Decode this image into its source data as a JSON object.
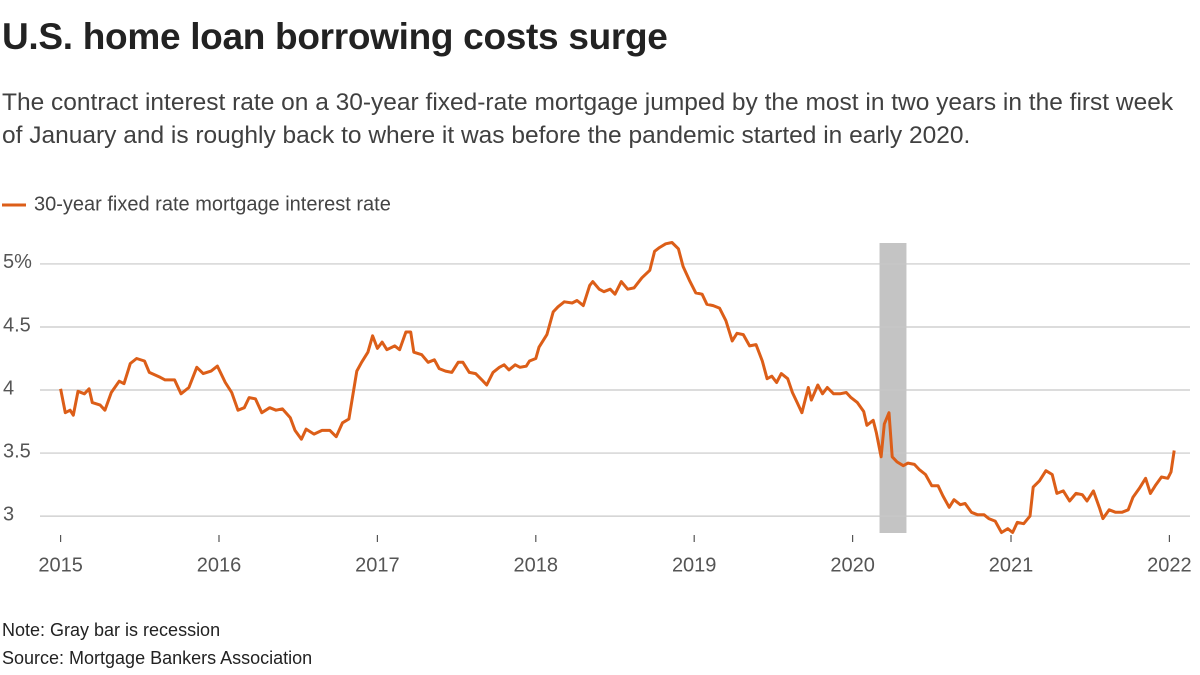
{
  "chart_data": {
    "type": "line",
    "title": "U.S. home loan borrowing costs surge",
    "subtitle": "The contract interest rate on a 30-year fixed-rate mortgage jumped by the most in two years in the first week of January and is roughly back to where it was before the pandemic started in early 2020.",
    "note": "Note: Gray bar is recession",
    "source": "Source: Mortgage Bankers Association",
    "x": [
      2015.0,
      2015.03,
      2015.06,
      2015.08,
      2015.11,
      2015.15,
      2015.18,
      2015.2,
      2015.25,
      2015.28,
      2015.32,
      2015.37,
      2015.4,
      2015.44,
      2015.48,
      2015.53,
      2015.56,
      2015.63,
      2015.66,
      2015.72,
      2015.76,
      2015.81,
      2015.86,
      2015.9,
      2015.95,
      2015.99,
      2016.04,
      2016.08,
      2016.12,
      2016.16,
      2016.19,
      2016.23,
      2016.27,
      2016.32,
      2016.36,
      2016.4,
      2016.45,
      2016.48,
      2016.52,
      2016.55,
      2016.6,
      2016.65,
      2016.7,
      2016.74,
      2016.78,
      2016.82,
      2016.87,
      2016.9,
      2016.94,
      2016.97,
      2017.0,
      2017.03,
      2017.06,
      2017.11,
      2017.14,
      2017.18,
      2017.21,
      2017.23,
      2017.28,
      2017.32,
      2017.36,
      2017.39,
      2017.43,
      2017.47,
      2017.51,
      2017.54,
      2017.58,
      2017.62,
      2017.66,
      2017.69,
      2017.73,
      2017.77,
      2017.8,
      2017.83,
      2017.87,
      2017.9,
      2017.94,
      2017.96,
      2018.0,
      2018.02,
      2018.07,
      2018.11,
      2018.14,
      2018.18,
      2018.23,
      2018.26,
      2018.3,
      2018.34,
      2018.36,
      2018.4,
      2018.43,
      2018.47,
      2018.5,
      2018.54,
      2018.58,
      2018.62,
      2018.67,
      2018.72,
      2018.75,
      2018.78,
      2018.82,
      2018.86,
      2018.9,
      2018.93,
      2018.97,
      2019.01,
      2019.05,
      2019.08,
      2019.12,
      2019.16,
      2019.2,
      2019.24,
      2019.27,
      2019.31,
      2019.35,
      2019.39,
      2019.43,
      2019.46,
      2019.49,
      2019.52,
      2019.55,
      2019.59,
      2019.62,
      2019.65,
      2019.68,
      2019.72,
      2019.74,
      2019.78,
      2019.81,
      2019.84,
      2019.88,
      2019.92,
      2019.96,
      2019.99,
      2020.03,
      2020.07,
      2020.09,
      2020.13,
      2020.15,
      2020.18,
      2020.2,
      2020.23,
      2020.25,
      2020.28,
      2020.32,
      2020.35,
      2020.39,
      2020.42,
      2020.46,
      2020.5,
      2020.54,
      2020.57,
      2020.61,
      2020.64,
      2020.68,
      2020.71,
      2020.75,
      2020.79,
      2020.83,
      2020.86,
      2020.9,
      2020.94,
      2020.98,
      2021.01,
      2021.04,
      2021.08,
      2021.12,
      2021.14,
      2021.18,
      2021.22,
      2021.26,
      2021.29,
      2021.33,
      2021.37,
      2021.41,
      2021.45,
      2021.48,
      2021.52,
      2021.56,
      2021.58,
      2021.62,
      2021.66,
      2021.7,
      2021.74,
      2021.77,
      2021.81,
      2021.85,
      2021.88,
      2021.91,
      2021.95,
      2021.99,
      2022.01,
      2022.03
    ],
    "series": [
      {
        "name": "30-year fixed rate mortgage interest rate",
        "color": "#dc5e18",
        "values": [
          4.01,
          3.82,
          3.84,
          3.8,
          3.99,
          3.97,
          4.01,
          3.9,
          3.88,
          3.84,
          3.98,
          4.07,
          4.05,
          4.21,
          4.25,
          4.23,
          4.14,
          4.1,
          4.08,
          4.08,
          3.97,
          4.02,
          4.18,
          4.13,
          4.15,
          4.19,
          4.06,
          3.98,
          3.84,
          3.86,
          3.94,
          3.93,
          3.82,
          3.86,
          3.84,
          3.85,
          3.78,
          3.68,
          3.61,
          3.69,
          3.65,
          3.68,
          3.68,
          3.63,
          3.74,
          3.77,
          4.15,
          4.22,
          4.3,
          4.43,
          4.33,
          4.38,
          4.32,
          4.35,
          4.32,
          4.46,
          4.46,
          4.3,
          4.28,
          4.22,
          4.24,
          4.17,
          4.15,
          4.14,
          4.22,
          4.22,
          4.14,
          4.13,
          4.08,
          4.04,
          4.14,
          4.18,
          4.2,
          4.16,
          4.2,
          4.18,
          4.19,
          4.23,
          4.25,
          4.34,
          4.44,
          4.62,
          4.66,
          4.7,
          4.69,
          4.71,
          4.67,
          4.83,
          4.86,
          4.8,
          4.78,
          4.8,
          4.76,
          4.86,
          4.8,
          4.81,
          4.89,
          4.95,
          5.1,
          5.13,
          5.16,
          5.17,
          5.12,
          4.98,
          4.87,
          4.77,
          4.76,
          4.68,
          4.67,
          4.65,
          4.55,
          4.39,
          4.45,
          4.44,
          4.35,
          4.36,
          4.23,
          4.09,
          4.11,
          4.06,
          4.13,
          4.09,
          3.98,
          3.9,
          3.82,
          4.02,
          3.92,
          4.04,
          3.97,
          4.02,
          3.97,
          3.97,
          3.98,
          3.94,
          3.9,
          3.83,
          3.72,
          3.76,
          3.66,
          3.47,
          3.73,
          3.82,
          3.47,
          3.43,
          3.4,
          3.42,
          3.41,
          3.37,
          3.33,
          3.24,
          3.24,
          3.16,
          3.07,
          3.13,
          3.09,
          3.1,
          3.03,
          3.01,
          3.01,
          2.98,
          2.96,
          2.87,
          2.9,
          2.87,
          2.95,
          2.94,
          3.0,
          3.23,
          3.28,
          3.36,
          3.33,
          3.18,
          3.2,
          3.12,
          3.18,
          3.17,
          3.12,
          3.2,
          3.06,
          2.98,
          3.05,
          3.03,
          3.03,
          3.05,
          3.15,
          3.22,
          3.3,
          3.18,
          3.24,
          3.31,
          3.3,
          3.35,
          3.52
        ]
      }
    ],
    "shaded_ranges": [
      [
        2020.17,
        2020.34
      ]
    ],
    "shade_color": "#c4c4c4",
    "xlim": [
      2014.87,
      2022.13
    ],
    "xticks": [
      2015,
      2016,
      2017,
      2018,
      2019,
      2020,
      2021,
      2022
    ],
    "ylim": [
      2.85,
      5.19
    ],
    "yticks": [
      3,
      3.5,
      4,
      4.5,
      {
        "value": 5,
        "label": "5%"
      }
    ],
    "grid": true
  }
}
